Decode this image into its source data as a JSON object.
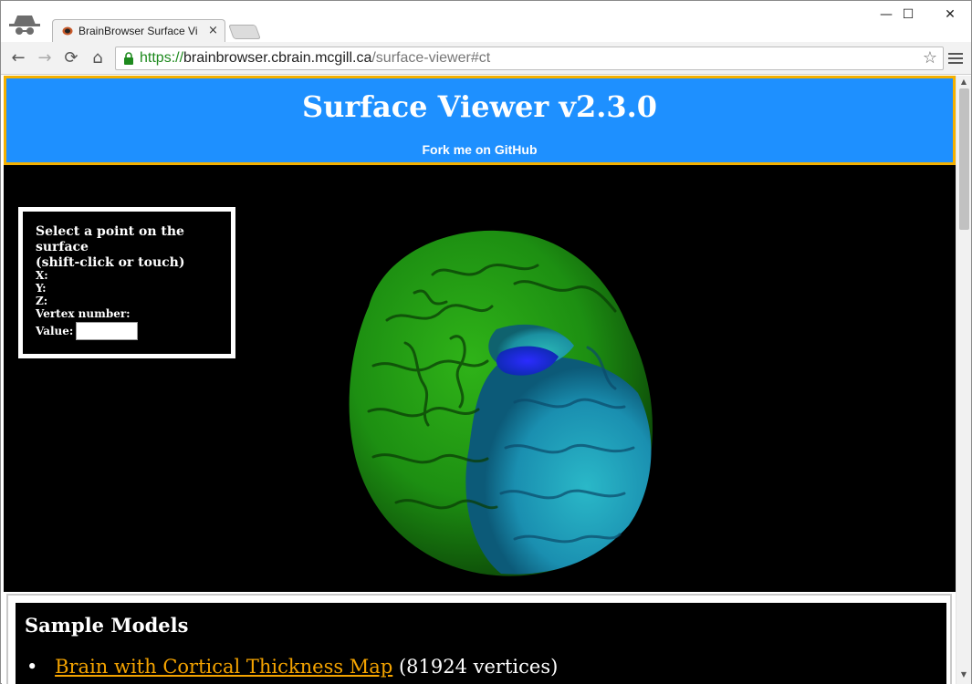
{
  "browser": {
    "tab_title": "BrainBrowser Surface Viev",
    "tab_close": "×",
    "url_scheme": "https://",
    "url_host": "brainbrowser.cbrain.mcgill.ca",
    "url_path": "/surface-viewer#ct",
    "minimize": "—",
    "maximize": "☐",
    "close": "✕",
    "back_icon": "←",
    "forward_icon": "→",
    "reload_icon": "⟳",
    "home_icon": "⌂",
    "star_icon": "☆"
  },
  "header": {
    "title": "Surface Viewer v2.3.0",
    "github_link": "Fork me on GitHub",
    "background": "#1e90ff",
    "border": "#f4b000"
  },
  "pick_info": {
    "title_line1": "Select a point on the surface",
    "title_line2": "(shift-click or touch)",
    "x_label": "X:",
    "y_label": "Y:",
    "z_label": "Z:",
    "vertex_label": "Vertex number:",
    "value_label": "Value:",
    "value_input": ""
  },
  "sample_models": {
    "heading": "Sample Models",
    "items": [
      {
        "link": "Brain with Cortical Thickness Map",
        "note": "(81924 vertices)"
      }
    ],
    "link_color": "#f4a300"
  }
}
